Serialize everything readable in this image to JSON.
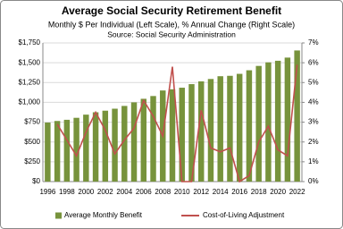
{
  "chart_data": {
    "type": "bar-line",
    "title": "Average Social Security Retirement Benefit",
    "subtitle": [
      "Monthly $ Per Individual (Left Scale), % Annual Change (Right Scale)",
      "Source:  Social Security Administration"
    ],
    "categories": [
      "1996",
      null,
      "1998",
      null,
      "2000",
      null,
      "2002",
      null,
      "2004",
      null,
      "2006",
      null,
      "2008",
      null,
      "2010",
      null,
      "2012",
      null,
      "2014",
      null,
      "2016",
      null,
      "2018",
      null,
      "2020",
      null,
      "2022"
    ],
    "series": [
      {
        "name": "Average Monthly Benefit",
        "type": "bar",
        "color": "#77933c",
        "values": [
          745,
          765,
          780,
          805,
          845,
          875,
          895,
          920,
          955,
          1000,
          1045,
          1080,
          1150,
          1165,
          1185,
          1230,
          1265,
          1295,
          1330,
          1335,
          1360,
          1405,
          1460,
          1505,
          1525,
          1565,
          1655
        ]
      },
      {
        "name": "Cost-of-Living Adjustment",
        "type": "line",
        "axis": "y2",
        "color": "#c0504d",
        "values": [
          null,
          2.9,
          2.1,
          1.3,
          2.5,
          3.5,
          2.6,
          1.4,
          2.1,
          2.7,
          4.1,
          3.3,
          2.3,
          5.8,
          0,
          0,
          3.6,
          1.7,
          1.5,
          1.7,
          0,
          0.3,
          2.0,
          2.8,
          1.6,
          1.3,
          5.9
        ]
      }
    ],
    "ylim": [
      0,
      1750
    ],
    "yticks": [
      {
        "value": 0,
        "label": "$0"
      },
      {
        "value": 250,
        "label": "$250"
      },
      {
        "value": 500,
        "label": "$500"
      },
      {
        "value": 750,
        "label": "$750"
      },
      {
        "value": 1000,
        "label": "$1,000"
      },
      {
        "value": 1250,
        "label": "$1,250"
      },
      {
        "value": 1500,
        "label": "$1,500"
      },
      {
        "value": 1750,
        "label": "$1,750"
      }
    ],
    "y2lim": [
      0,
      7
    ],
    "y2ticks": [
      {
        "value": 0,
        "label": "0%"
      },
      {
        "value": 1,
        "label": "1%"
      },
      {
        "value": 2,
        "label": "2%"
      },
      {
        "value": 3,
        "label": "3%"
      },
      {
        "value": 4,
        "label": "4%"
      },
      {
        "value": 5,
        "label": "5%"
      },
      {
        "value": 6,
        "label": "6%"
      },
      {
        "value": 7,
        "label": "7%"
      }
    ],
    "grid": true,
    "legend": "bottom"
  }
}
